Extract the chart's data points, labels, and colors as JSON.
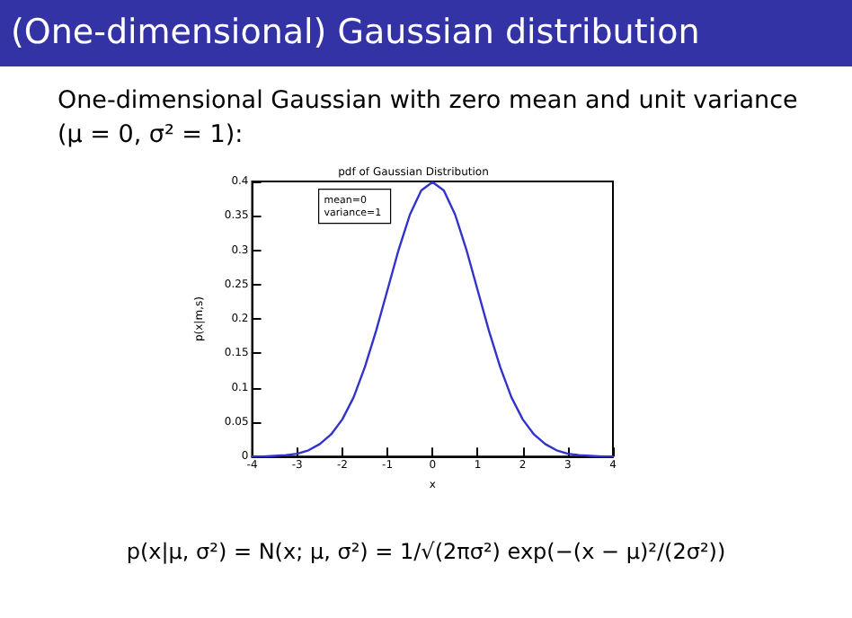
{
  "chart_data": {
    "type": "line",
    "title": "pdf of Gaussian Distribution",
    "xlabel": "x",
    "ylabel": "p(x|m,s)",
    "annotations": [
      "(One-dimensional) Gaussian distribution",
      "One-dimensional Gaussian with zero mean and unit variance (μ = 0, σ² = 1):",
      "mean=0\nvariance=1",
      "p(x|μ, σ²) = N(x; μ, σ²) = 1/√(2πσ²) exp(−(x − μ)²/(2σ²))"
    ],
    "x": [
      -4,
      -3.75,
      -3.5,
      -3.25,
      -3,
      -2.75,
      -2.5,
      -2.25,
      -2,
      -1.75,
      -1.5,
      -1.25,
      -1,
      -0.75,
      -0.5,
      -0.25,
      0,
      0.25,
      0.5,
      0.75,
      1,
      1.25,
      1.5,
      1.75,
      2,
      2.25,
      2.5,
      2.75,
      3,
      3.25,
      3.5,
      3.75,
      4
    ],
    "series": [
      {
        "color": "#3333cc",
        "values": [
          0.0,
          0.0,
          0.001,
          0.002,
          0.004,
          0.009,
          0.018,
          0.032,
          0.054,
          0.086,
          0.13,
          0.183,
          0.242,
          0.301,
          0.352,
          0.387,
          0.399,
          0.387,
          0.352,
          0.301,
          0.242,
          0.183,
          0.13,
          0.086,
          0.054,
          0.032,
          0.018,
          0.009,
          0.004,
          0.002,
          0.001,
          0.0,
          0.0
        ]
      }
    ],
    "xlim": [
      -4,
      4
    ],
    "xticks": [
      -4,
      -3,
      -2,
      -1,
      0,
      1,
      2,
      3,
      4
    ],
    "ylim": [
      0,
      0.4
    ],
    "yticks": [
      0,
      0.05,
      0.1,
      0.15,
      0.2,
      0.25,
      0.3,
      0.35,
      0.4
    ],
    "grid": false,
    "marker": "none",
    "line_style": "solid"
  }
}
